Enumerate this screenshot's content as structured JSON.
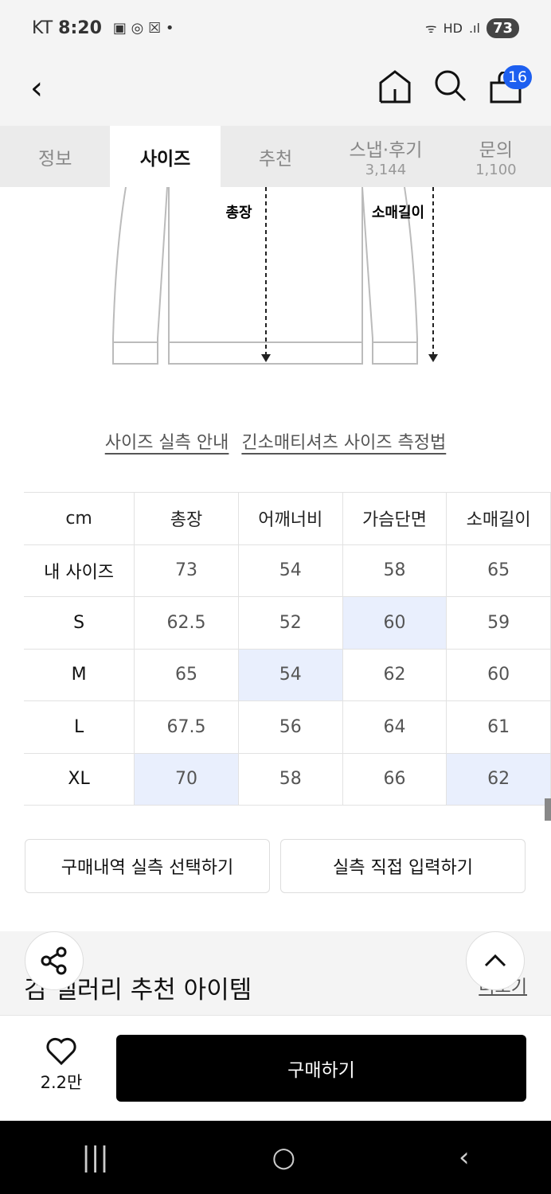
{
  "status": {
    "carrier": "KT",
    "time": "8:20",
    "battery": "73"
  },
  "header": {
    "cart_count": "16"
  },
  "tabs": [
    {
      "label": "정보"
    },
    {
      "label": "사이즈",
      "active": true
    },
    {
      "label": "추천"
    },
    {
      "label": "스냅·후기",
      "count": "3,144"
    },
    {
      "label": "문의",
      "count": "1,100"
    }
  ],
  "diagram": {
    "length_label": "총장",
    "sleeve_label": "소매길이"
  },
  "links": {
    "guide": "사이즈 실측 안내",
    "method": "긴소매티셔츠 사이즈 측정법"
  },
  "size_table": {
    "headers": [
      "cm",
      "총장",
      "어깨너비",
      "가슴단면",
      "소매길이"
    ],
    "rows": [
      [
        "내 사이즈",
        "73",
        "54",
        "58",
        "65"
      ],
      [
        "S",
        "62.5",
        "52",
        "60",
        "59"
      ],
      [
        "M",
        "65",
        "54",
        "62",
        "60"
      ],
      [
        "L",
        "67.5",
        "56",
        "64",
        "61"
      ],
      [
        "XL",
        "70",
        "58",
        "66",
        "62"
      ]
    ],
    "highlight_color": "#e9effd"
  },
  "buttons": {
    "purchase_history": "구매내역 실측 선택하기",
    "manual_input": "실측 직접 입력하기"
  },
  "recommend": {
    "title": "검 갤러리 추천 아이템",
    "more": "더보기"
  },
  "bottom": {
    "likes": "2.2만",
    "buy": "구매하기"
  }
}
